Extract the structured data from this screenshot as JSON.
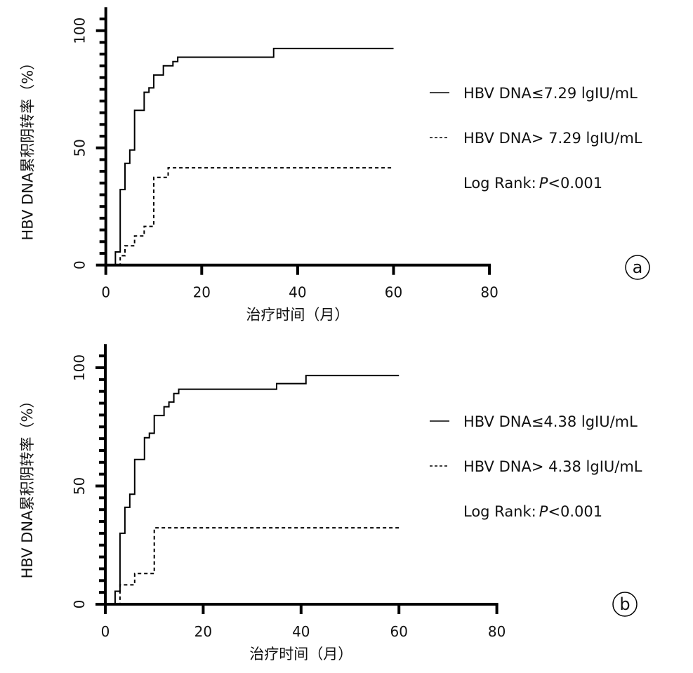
{
  "chart_data": [
    {
      "type": "line",
      "step": true,
      "panel_label": "a",
      "xlabel": "治疗时间（月）",
      "ylabel": "HBV DNA累积阴转率（%）",
      "xlim": [
        0,
        80
      ],
      "ylim": [
        0,
        110
      ],
      "x_ticks": [
        0,
        20,
        40,
        60,
        80
      ],
      "y_ticks": [
        0,
        50,
        100
      ],
      "y_minor_step": 5,
      "grid": false,
      "legend_position": "right",
      "annotation": {
        "prefix": "Log Rank:",
        "p": "P",
        "suffix": "<0.001"
      },
      "series": [
        {
          "name": "HBV DNA≤7.29 lgIU/mL",
          "style": "solid",
          "x": [
            0,
            2,
            3,
            4,
            5,
            6,
            8,
            9,
            10,
            12,
            14,
            15,
            35,
            60
          ],
          "y": [
            0,
            5.6,
            32.2,
            43.4,
            49.1,
            66,
            73.7,
            75.6,
            81.1,
            85,
            86.8,
            88.7,
            92.4,
            92.4
          ]
        },
        {
          "name": "HBV DNA> 7.29 lgIU/mL",
          "style": "dashed",
          "x": [
            0,
            3,
            4,
            6,
            8,
            10,
            13,
            60
          ],
          "y": [
            0,
            4,
            8.2,
            12.4,
            16.5,
            37.4,
            41.5,
            41.5
          ]
        }
      ]
    },
    {
      "type": "line",
      "step": true,
      "panel_label": "b",
      "xlabel": "治疗时间（月）",
      "ylabel": "HBV DNA累积阴转率（%）",
      "xlim": [
        0,
        80
      ],
      "ylim": [
        0,
        110
      ],
      "x_ticks": [
        0,
        20,
        40,
        60,
        80
      ],
      "y_ticks": [
        0,
        50,
        100
      ],
      "y_minor_step": 5,
      "grid": false,
      "legend_position": "right",
      "annotation": {
        "prefix": "Log Rank:",
        "p": "P",
        "suffix": "<0.001"
      },
      "series": [
        {
          "name": "HBV DNA≤4.38 lgIU/mL",
          "style": "solid",
          "x": [
            0,
            2,
            3,
            4,
            5,
            6,
            8,
            9,
            10,
            12,
            13,
            14,
            15,
            35,
            41,
            60
          ],
          "y": [
            0,
            5.5,
            30,
            41,
            46.5,
            61.2,
            70.4,
            72.3,
            79.8,
            83.5,
            85.5,
            89.1,
            90.9,
            93.3,
            96.7,
            96.7
          ]
        },
        {
          "name": "HBV DNA> 4.38 lgIU/mL",
          "style": "dashed",
          "x": [
            0,
            3,
            6,
            10,
            60
          ],
          "y": [
            0,
            8.2,
            13,
            32.3,
            32.3
          ]
        }
      ]
    }
  ]
}
